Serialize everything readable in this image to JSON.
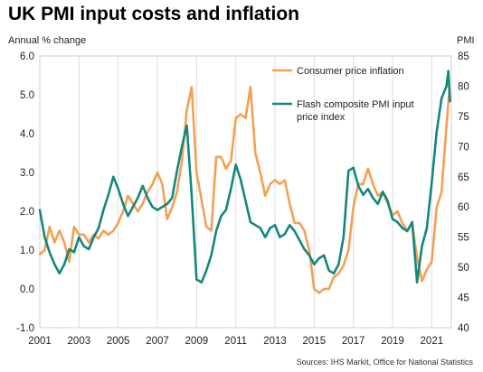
{
  "title": "UK PMI input costs and inflation",
  "source": "Sources: IHS Markit, Office for National Statistics",
  "chart_data": {
    "type": "line",
    "left_axis_label": "Annual % change",
    "right_axis_label": "PMI",
    "ylim_left": [
      -1.0,
      6.0
    ],
    "ylim_right": [
      40,
      85
    ],
    "left_ticks": [
      "6.0",
      "5.0",
      "4.0",
      "3.0",
      "2.0",
      "1.0",
      "0.0",
      "-1.0"
    ],
    "right_ticks": [
      "85",
      "80",
      "75",
      "70",
      "65",
      "60",
      "55",
      "50",
      "45",
      "40"
    ],
    "x_ticks": [
      "2001",
      "2003",
      "2005",
      "2007",
      "2009",
      "2011",
      "2013",
      "2015",
      "2017",
      "2019",
      "2021"
    ],
    "xlim": [
      2001.0,
      2022.0
    ],
    "grid": "vertical",
    "legend_position": "top-right",
    "series": [
      {
        "name": "Consumer price inflation",
        "axis": "left",
        "color": "#F4A053",
        "points": [
          [
            2001.0,
            0.9
          ],
          [
            2001.25,
            1.0
          ],
          [
            2001.5,
            1.6
          ],
          [
            2001.75,
            1.2
          ],
          [
            2002.0,
            1.5
          ],
          [
            2002.25,
            1.2
          ],
          [
            2002.5,
            0.7
          ],
          [
            2002.75,
            1.6
          ],
          [
            2003.0,
            1.4
          ],
          [
            2003.25,
            1.4
          ],
          [
            2003.5,
            1.2
          ],
          [
            2003.75,
            1.4
          ],
          [
            2004.0,
            1.3
          ],
          [
            2004.25,
            1.5
          ],
          [
            2004.5,
            1.4
          ],
          [
            2004.75,
            1.5
          ],
          [
            2005.0,
            1.7
          ],
          [
            2005.25,
            2.0
          ],
          [
            2005.5,
            2.4
          ],
          [
            2005.75,
            2.2
          ],
          [
            2006.0,
            2.0
          ],
          [
            2006.25,
            2.2
          ],
          [
            2006.5,
            2.5
          ],
          [
            2006.75,
            2.7
          ],
          [
            2007.0,
            3.0
          ],
          [
            2007.25,
            2.7
          ],
          [
            2007.5,
            1.8
          ],
          [
            2007.75,
            2.1
          ],
          [
            2008.0,
            2.5
          ],
          [
            2008.25,
            3.3
          ],
          [
            2008.5,
            4.6
          ],
          [
            2008.75,
            5.2
          ],
          [
            2009.0,
            3.0
          ],
          [
            2009.25,
            2.3
          ],
          [
            2009.5,
            1.6
          ],
          [
            2009.75,
            1.5
          ],
          [
            2010.0,
            3.4
          ],
          [
            2010.25,
            3.4
          ],
          [
            2010.5,
            3.1
          ],
          [
            2010.75,
            3.3
          ],
          [
            2011.0,
            4.4
          ],
          [
            2011.25,
            4.5
          ],
          [
            2011.5,
            4.4
          ],
          [
            2011.75,
            5.2
          ],
          [
            2012.0,
            3.5
          ],
          [
            2012.25,
            3.0
          ],
          [
            2012.5,
            2.4
          ],
          [
            2012.75,
            2.7
          ],
          [
            2013.0,
            2.8
          ],
          [
            2013.25,
            2.7
          ],
          [
            2013.5,
            2.8
          ],
          [
            2013.75,
            2.2
          ],
          [
            2014.0,
            1.7
          ],
          [
            2014.25,
            1.7
          ],
          [
            2014.5,
            1.5
          ],
          [
            2014.75,
            1.0
          ],
          [
            2015.0,
            0.0
          ],
          [
            2015.25,
            -0.1
          ],
          [
            2015.5,
            0.0
          ],
          [
            2015.75,
            0.0
          ],
          [
            2016.0,
            0.3
          ],
          [
            2016.25,
            0.4
          ],
          [
            2016.5,
            0.6
          ],
          [
            2016.75,
            1.0
          ],
          [
            2017.0,
            2.1
          ],
          [
            2017.25,
            2.7
          ],
          [
            2017.5,
            2.7
          ],
          [
            2017.75,
            3.1
          ],
          [
            2018.0,
            2.7
          ],
          [
            2018.25,
            2.4
          ],
          [
            2018.5,
            2.5
          ],
          [
            2018.75,
            2.2
          ],
          [
            2019.0,
            1.9
          ],
          [
            2019.25,
            2.0
          ],
          [
            2019.5,
            1.7
          ],
          [
            2019.75,
            1.5
          ],
          [
            2020.0,
            1.7
          ],
          [
            2020.25,
            0.8
          ],
          [
            2020.5,
            0.2
          ],
          [
            2020.75,
            0.5
          ],
          [
            2021.0,
            0.7
          ],
          [
            2021.25,
            2.1
          ],
          [
            2021.5,
            2.5
          ],
          [
            2021.75,
            4.2
          ],
          [
            2021.9,
            5.1
          ]
        ]
      },
      {
        "name": "Flash composite PMI input price index",
        "axis": "right",
        "color": "#14877E",
        "points": [
          [
            2001.0,
            59.5
          ],
          [
            2001.25,
            55.0
          ],
          [
            2001.5,
            52.5
          ],
          [
            2001.75,
            50.5
          ],
          [
            2002.0,
            49.0
          ],
          [
            2002.25,
            50.5
          ],
          [
            2002.5,
            53.0
          ],
          [
            2002.75,
            52.5
          ],
          [
            2003.0,
            55.0
          ],
          [
            2003.25,
            53.5
          ],
          [
            2003.5,
            53.0
          ],
          [
            2003.75,
            55.0
          ],
          [
            2004.0,
            56.5
          ],
          [
            2004.25,
            59.5
          ],
          [
            2004.5,
            62.0
          ],
          [
            2004.75,
            65.0
          ],
          [
            2005.0,
            63.0
          ],
          [
            2005.25,
            60.5
          ],
          [
            2005.5,
            58.5
          ],
          [
            2005.75,
            60.0
          ],
          [
            2006.0,
            61.5
          ],
          [
            2006.25,
            63.5
          ],
          [
            2006.5,
            61.5
          ],
          [
            2006.75,
            60.0
          ],
          [
            2007.0,
            59.5
          ],
          [
            2007.25,
            60.0
          ],
          [
            2007.5,
            60.5
          ],
          [
            2007.75,
            61.5
          ],
          [
            2008.0,
            66.0
          ],
          [
            2008.25,
            70.0
          ],
          [
            2008.5,
            73.5
          ],
          [
            2008.75,
            62.0
          ],
          [
            2009.0,
            48.0
          ],
          [
            2009.25,
            47.5
          ],
          [
            2009.5,
            49.5
          ],
          [
            2009.75,
            52.0
          ],
          [
            2010.0,
            56.0
          ],
          [
            2010.25,
            58.5
          ],
          [
            2010.5,
            59.5
          ],
          [
            2010.75,
            63.0
          ],
          [
            2011.0,
            67.0
          ],
          [
            2011.25,
            64.5
          ],
          [
            2011.5,
            61.0
          ],
          [
            2011.75,
            57.5
          ],
          [
            2012.0,
            57.0
          ],
          [
            2012.25,
            56.5
          ],
          [
            2012.5,
            55.0
          ],
          [
            2012.75,
            56.5
          ],
          [
            2013.0,
            57.0
          ],
          [
            2013.25,
            55.0
          ],
          [
            2013.5,
            55.5
          ],
          [
            2013.75,
            57.0
          ],
          [
            2014.0,
            56.0
          ],
          [
            2014.25,
            54.5
          ],
          [
            2014.5,
            53.0
          ],
          [
            2014.75,
            52.0
          ],
          [
            2015.0,
            50.5
          ],
          [
            2015.25,
            51.5
          ],
          [
            2015.5,
            52.0
          ],
          [
            2015.75,
            49.5
          ],
          [
            2016.0,
            49.0
          ],
          [
            2016.25,
            50.5
          ],
          [
            2016.5,
            55.0
          ],
          [
            2016.75,
            66.0
          ],
          [
            2017.0,
            66.5
          ],
          [
            2017.25,
            63.5
          ],
          [
            2017.5,
            62.0
          ],
          [
            2017.75,
            63.0
          ],
          [
            2018.0,
            61.5
          ],
          [
            2018.25,
            60.5
          ],
          [
            2018.5,
            62.5
          ],
          [
            2018.75,
            61.0
          ],
          [
            2019.0,
            58.0
          ],
          [
            2019.25,
            57.5
          ],
          [
            2019.5,
            56.5
          ],
          [
            2019.75,
            56.0
          ],
          [
            2020.0,
            57.5
          ],
          [
            2020.25,
            47.5
          ],
          [
            2020.5,
            53.5
          ],
          [
            2020.75,
            56.5
          ],
          [
            2021.0,
            64.0
          ],
          [
            2021.25,
            72.5
          ],
          [
            2021.5,
            78.0
          ],
          [
            2021.75,
            80.0
          ],
          [
            2021.85,
            82.5
          ],
          [
            2021.93,
            77.5
          ]
        ]
      }
    ]
  }
}
